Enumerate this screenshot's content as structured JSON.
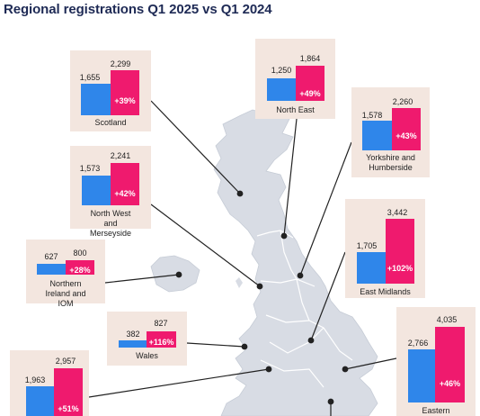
{
  "title": "Regional registrations Q1 2025 vs Q1 2024",
  "colors": {
    "q1_2024": "#2f86ea",
    "q1_2025": "#ef1a6e",
    "card_bg": "#f3e6df",
    "map_fill": "#d8dce4"
  },
  "chart_data": {
    "type": "bar",
    "series": [
      {
        "name": "Q1 2024",
        "color": "#2f86ea"
      },
      {
        "name": "Q1 2025",
        "color": "#ef1a6e"
      }
    ],
    "regions": [
      {
        "id": "scotland",
        "name": "Scotland",
        "q1_2024": 1655,
        "q1_2025": 2299,
        "v2024": "1,655",
        "v2025": "2,299",
        "change": "+39%"
      },
      {
        "id": "north-east",
        "name": "North East",
        "q1_2024": 1250,
        "q1_2025": 1864,
        "v2024": "1,250",
        "v2025": "1,864",
        "change": "+49%"
      },
      {
        "id": "yorkshire",
        "name": "Yorkshire and Humberside",
        "q1_2024": 1578,
        "q1_2025": 2260,
        "v2024": "1,578",
        "v2025": "2,260",
        "change": "+43%"
      },
      {
        "id": "north-west",
        "name": "North West and Merseyside",
        "q1_2024": 1573,
        "q1_2025": 2241,
        "v2024": "1,573",
        "v2025": "2,241",
        "change": "+42%"
      },
      {
        "id": "east-midlands",
        "name": "East Midlands",
        "q1_2024": 1705,
        "q1_2025": 3442,
        "v2024": "1,705",
        "v2025": "3,442",
        "change": "+102%"
      },
      {
        "id": "northern-ireland",
        "name": "Northern Ireland and IOM",
        "q1_2024": 627,
        "q1_2025": 800,
        "v2024": "627",
        "v2025": "800",
        "change": "+28%"
      },
      {
        "id": "wales",
        "name": "Wales",
        "q1_2024": 382,
        "q1_2025": 827,
        "v2024": "382",
        "v2025": "827",
        "change": "+116%"
      },
      {
        "id": "eastern",
        "name": "Eastern",
        "q1_2024": 2766,
        "q1_2025": 4035,
        "v2024": "2,766",
        "v2025": "4,035",
        "change": "+46%"
      },
      {
        "id": "west-midlands",
        "name": "",
        "q1_2024": 1963,
        "q1_2025": 2957,
        "v2024": "1,963",
        "v2025": "2,957",
        "change": "+51%"
      }
    ]
  }
}
